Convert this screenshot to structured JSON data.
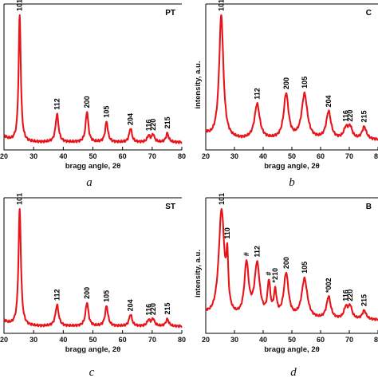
{
  "accent_color": "#e8141b",
  "chart_data": [
    {
      "type": "line",
      "panel_label": "PT",
      "caption": "a",
      "xlabel": "bragg angle, 2θ",
      "ylabel": "",
      "xlim": [
        20,
        80
      ],
      "xticks": [
        "20",
        "30",
        "40",
        "50",
        "60",
        "70",
        "80"
      ],
      "baseline": 0.06,
      "peaks": [
        {
          "label": "101",
          "x": 25.3,
          "height": 1.0,
          "width": 0.45
        },
        {
          "label": "112",
          "x": 37.9,
          "height": 0.22,
          "width": 0.6
        },
        {
          "label": "200",
          "x": 48.0,
          "height": 0.24,
          "width": 0.55
        },
        {
          "label": "105",
          "x": 54.6,
          "height": 0.16,
          "width": 0.55
        },
        {
          "label": "204",
          "x": 62.7,
          "height": 0.11,
          "width": 0.55
        },
        {
          "label": "116",
          "x": 68.8,
          "height": 0.05,
          "width": 0.55
        },
        {
          "label": "220",
          "x": 70.3,
          "height": 0.06,
          "width": 0.55
        },
        {
          "label": "215",
          "x": 75.1,
          "height": 0.07,
          "width": 0.55
        }
      ]
    },
    {
      "type": "line",
      "panel_label": "C",
      "caption": "b",
      "xlabel": "bragg angle, 2θ",
      "ylabel": "intensity, a.u.",
      "xlim": [
        20,
        80
      ],
      "xticks": [
        "20",
        "30",
        "40",
        "50",
        "60",
        "70",
        "80"
      ],
      "baseline": 0.08,
      "peaks": [
        {
          "label": "101",
          "x": 25.4,
          "height": 1.0,
          "width": 0.9
        },
        {
          "label": "112",
          "x": 37.9,
          "height": 0.28,
          "width": 1.1
        },
        {
          "label": "200",
          "x": 48.0,
          "height": 0.36,
          "width": 1.0
        },
        {
          "label": "105",
          "x": 54.4,
          "height": 0.36,
          "width": 1.2
        },
        {
          "label": "204",
          "x": 62.8,
          "height": 0.22,
          "width": 1.0
        },
        {
          "label": "116",
          "x": 68.8,
          "height": 0.08,
          "width": 0.9
        },
        {
          "label": "220",
          "x": 70.3,
          "height": 0.09,
          "width": 0.9
        },
        {
          "label": "215",
          "x": 75.2,
          "height": 0.1,
          "width": 0.9
        }
      ]
    },
    {
      "type": "line",
      "panel_label": "ST",
      "caption": "c",
      "xlabel": "bragg angle, 2θ",
      "ylabel": "",
      "xlim": [
        20,
        80
      ],
      "xticks": [
        "20",
        "30",
        "40",
        "50",
        "60",
        "70",
        "80"
      ],
      "baseline": 0.06,
      "peaks": [
        {
          "label": "101",
          "x": 25.3,
          "height": 1.0,
          "width": 0.5
        },
        {
          "label": "112",
          "x": 37.9,
          "height": 0.18,
          "width": 0.65
        },
        {
          "label": "200",
          "x": 48.0,
          "height": 0.2,
          "width": 0.6
        },
        {
          "label": "105",
          "x": 54.6,
          "height": 0.17,
          "width": 0.6
        },
        {
          "label": "204",
          "x": 62.7,
          "height": 0.1,
          "width": 0.6
        },
        {
          "label": "116",
          "x": 68.8,
          "height": 0.05,
          "width": 0.6
        },
        {
          "label": "220",
          "x": 70.3,
          "height": 0.06,
          "width": 0.6
        },
        {
          "label": "215",
          "x": 75.1,
          "height": 0.06,
          "width": 0.6
        }
      ]
    },
    {
      "type": "line",
      "panel_label": "B",
      "caption": "d",
      "xlabel": "bragg angle, 2θ",
      "ylabel": "intensity, a.u.",
      "xlim": [
        20,
        80
      ],
      "xticks": [
        "20",
        "30",
        "40",
        "50",
        "60",
        "70",
        "80"
      ],
      "baseline": 0.12,
      "peaks": [
        {
          "label": "101",
          "x": 25.5,
          "height": 0.98,
          "width": 1.2
        },
        {
          "label": "110",
          "x": 27.5,
          "height": 0.42,
          "width": 0.4
        },
        {
          "label": "#",
          "x": 34.2,
          "height": 0.48,
          "width": 0.9
        },
        {
          "label": "112",
          "x": 37.9,
          "height": 0.48,
          "width": 1.1
        },
        {
          "label": "#",
          "x": 42.0,
          "height": 0.3,
          "width": 0.6
        },
        {
          "label": "*210",
          "x": 44.2,
          "height": 0.22,
          "width": 0.6
        },
        {
          "label": "200",
          "x": 48.0,
          "height": 0.4,
          "width": 1.0
        },
        {
          "label": "105",
          "x": 54.4,
          "height": 0.36,
          "width": 1.2
        },
        {
          "label": "*002",
          "x": 62.8,
          "height": 0.2,
          "width": 0.9
        },
        {
          "label": "116",
          "x": 68.8,
          "height": 0.1,
          "width": 0.8
        },
        {
          "label": "220",
          "x": 70.3,
          "height": 0.11,
          "width": 0.8
        },
        {
          "label": "215",
          "x": 75.2,
          "height": 0.08,
          "width": 0.8
        }
      ]
    }
  ]
}
